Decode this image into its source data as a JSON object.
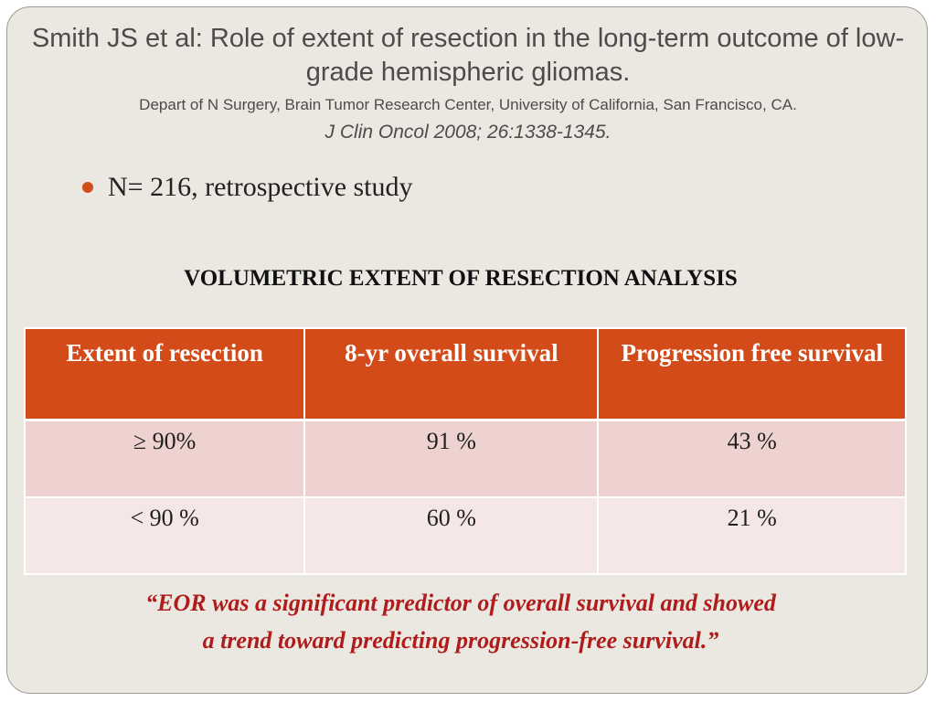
{
  "title": {
    "main": "Smith JS et al: Role of extent of resection in the long-term outcome of low-grade hemispheric gliomas.",
    "affiliation": "Depart of N Surgery, Brain Tumor Research Center, University of California, San Francisco, CA.",
    "journal": "J Clin Oncol  2008; 26:1338-1345."
  },
  "bullets": [
    "N= 216, retrospective study"
  ],
  "section_heading": "VOLUMETRIC EXTENT OF RESECTION ANALYSIS",
  "table": {
    "headers": [
      "Extent of resection",
      "8-yr overall survival",
      "Progression free survival"
    ],
    "rows": [
      [
        "≥ 90%",
        "91 %",
        "43 %"
      ],
      [
        "< 90 %",
        "60 %",
        "21 %"
      ]
    ]
  },
  "quote": {
    "line1": "“EOR was a significant predictor of overall survival and showed",
    "line2": "a trend toward predicting progression-free survival.”"
  },
  "colors": {
    "accent": "#d24b19",
    "quote": "#b01c1c",
    "background": "#ebe7e1"
  }
}
